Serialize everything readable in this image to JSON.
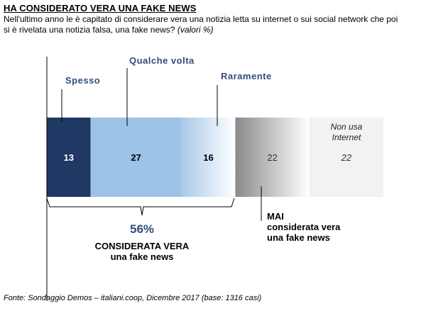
{
  "header": {
    "title": "HA CONSIDERATO VERA UNA FAKE NEWS",
    "subtitle_main": "Nell'ultimo anno le è capitato di considerare vera una notizia letta su internet  o sui social network che poi si è rivelata una notizia falsa, una fake news?",
    "subtitle_note": "(valori %)"
  },
  "chart_data": {
    "type": "bar",
    "orientation": "horizontal-stacked",
    "title": "HA CONSIDERATO VERA UNA FAKE NEWS",
    "categories": [
      "Spesso",
      "Qualche volta",
      "Raramente",
      "MAI considerata vera una fake news",
      "Non usa Internet"
    ],
    "values": [
      13,
      27,
      16,
      22,
      22
    ],
    "value_labels": [
      "13",
      "27",
      "16",
      "22",
      "22"
    ],
    "colors": [
      "#1f3864",
      "#9dc3e6",
      "#bdd7ee",
      "#7f7f7f",
      "#f2f2f2"
    ],
    "xlim": [
      0,
      100
    ]
  },
  "labels": {
    "spesso": "Spesso",
    "qualche_volta": "Qualche volta",
    "raramente": "Raramente",
    "non_usa_line1": "Non usa",
    "non_usa_line2": "Internet",
    "mai_line1": "MAI",
    "mai_line2": "considerata vera",
    "mai_line3": "una fake news"
  },
  "summary": {
    "percent": "56%",
    "line1": "CONSIDERATA VERA",
    "line2": "una fake news"
  },
  "footer": "Fonte: Sondaggio Demos – italiani.coop, Dicembre 2017 (base: 1316 casi)"
}
